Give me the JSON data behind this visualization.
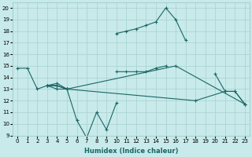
{
  "xlabel": "Humidex (Indice chaleur)",
  "ylabel": "",
  "xlim": [
    -0.5,
    23.5
  ],
  "ylim": [
    9,
    20.5
  ],
  "xticks": [
    0,
    1,
    2,
    3,
    4,
    5,
    6,
    7,
    8,
    9,
    10,
    11,
    12,
    13,
    14,
    15,
    16,
    17,
    18,
    19,
    20,
    21,
    22,
    23
  ],
  "yticks": [
    9,
    10,
    11,
    12,
    13,
    14,
    15,
    16,
    17,
    18,
    19,
    20
  ],
  "background_color": "#c8eaea",
  "grid_color": "#a8d0d0",
  "line_color": "#1a6666",
  "lines": [
    {
      "comment": "top line: starts at 0 with 14.8, goes to 1=14.8, then down to 2=13, 3=13.3, 4=13.3, 5=13, then to 10=14.5,11=14.5,12=14.5,13=14.5,14=14.8,15=15, then 20=14.3,21=12.8,22=12.8,23=11.7",
      "x": [
        0,
        1,
        2,
        3,
        4,
        5,
        10,
        11,
        12,
        13,
        14,
        15,
        20,
        21,
        22,
        23
      ],
      "y": [
        14.8,
        14.8,
        13.0,
        13.3,
        13.3,
        13.0,
        14.5,
        14.5,
        14.5,
        14.5,
        14.8,
        15.0,
        14.3,
        12.8,
        12.8,
        11.7
      ],
      "connected": false
    },
    {
      "comment": "zigzag down line: 3=13.3,4=13.5,5=13,6=10.3,7=8.8,8=11,9=9.5,10=11.8",
      "x": [
        3,
        4,
        5,
        6,
        7,
        8,
        9,
        10
      ],
      "y": [
        13.3,
        13.5,
        13.0,
        10.3,
        8.8,
        11.0,
        9.5,
        11.8
      ],
      "connected": true
    },
    {
      "comment": "high arc line: from 3=13.3,4=13,5=13 up to 10=17.8,11=18,12=18.2,13=18.5,14=18.8,15=20,16=19,17=17.2",
      "x": [
        3,
        4,
        5,
        10,
        11,
        12,
        13,
        14,
        15,
        16,
        17
      ],
      "y": [
        13.3,
        13.0,
        13.0,
        17.8,
        18.0,
        18.2,
        18.5,
        18.8,
        20.0,
        19.0,
        17.2
      ],
      "connected": false
    },
    {
      "comment": "line from 3=13.3,4=13.3,5=13 to 16=15 to 23=11.7",
      "x": [
        3,
        4,
        5,
        16,
        23
      ],
      "y": [
        13.3,
        13.3,
        13.0,
        15.0,
        11.7
      ],
      "connected": true
    },
    {
      "comment": "bottom flat line: 3=13.3,4=13.3,5=13 to 18=12,21=12.8,22=12.8,23=11.7",
      "x": [
        3,
        4,
        5,
        18,
        21,
        22,
        23
      ],
      "y": [
        13.3,
        13.3,
        13.0,
        12.0,
        12.8,
        12.8,
        11.7
      ],
      "connected": true
    }
  ]
}
